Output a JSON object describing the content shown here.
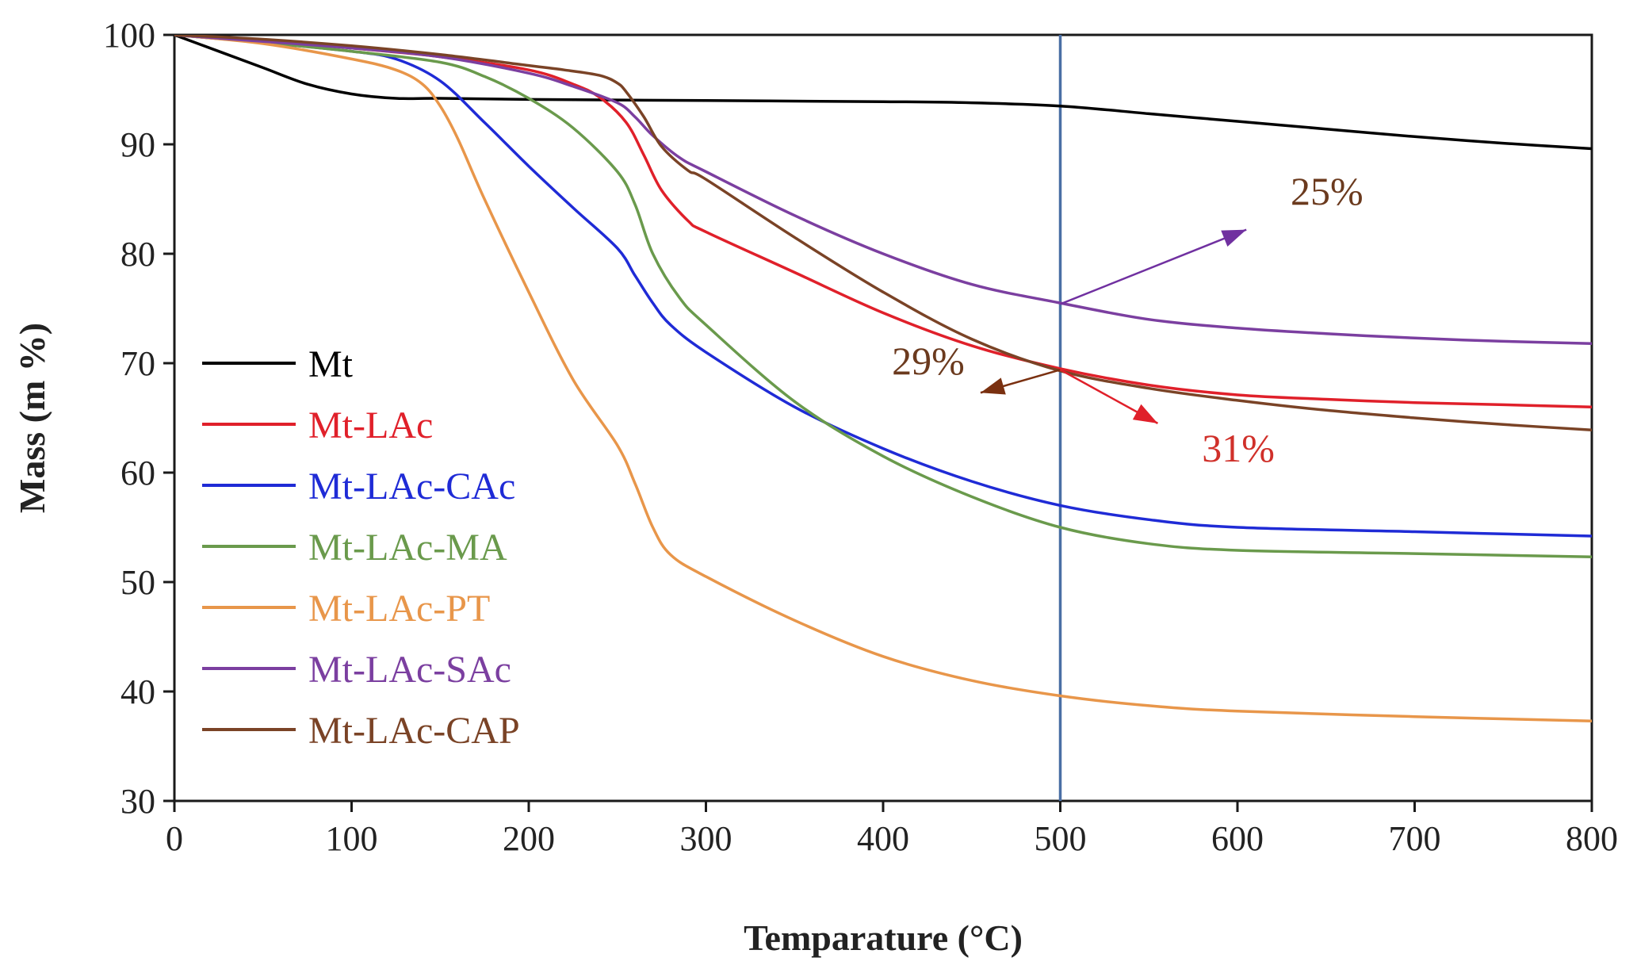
{
  "chart_data": {
    "type": "line",
    "title": "",
    "xlabel": "Temparature (°C)",
    "ylabel": "Mass (m %)",
    "xlim": [
      0,
      800
    ],
    "ylim": [
      30,
      100
    ],
    "xticks": [
      0,
      100,
      200,
      300,
      400,
      500,
      600,
      700,
      800
    ],
    "yticks": [
      30,
      40,
      50,
      60,
      70,
      80,
      90,
      100
    ],
    "grid": false,
    "legend_position": "left",
    "reference_line": {
      "x": 500,
      "color": "#4a6fa5"
    },
    "series": [
      {
        "name": "Mt",
        "color": "#000000",
        "x": [
          0,
          25,
          50,
          75,
          100,
          125,
          150,
          200,
          300,
          400,
          450,
          500,
          550,
          600,
          650,
          700,
          750,
          800
        ],
        "y": [
          100,
          98.5,
          97,
          95.5,
          94.6,
          94.2,
          94.2,
          94.1,
          94.0,
          93.9,
          93.8,
          93.5,
          92.8,
          92.1,
          91.4,
          90.7,
          90.1,
          89.6
        ]
      },
      {
        "name": "Mt-LAc",
        "color": "#e0202a",
        "x": [
          0,
          50,
          100,
          150,
          200,
          225,
          240,
          255,
          265,
          275,
          290,
          300,
          350,
          400,
          450,
          500,
          550,
          600,
          650,
          700,
          750,
          800
        ],
        "y": [
          100,
          99.5,
          98.8,
          98.0,
          96.8,
          95.5,
          94.3,
          92.0,
          89.0,
          85.8,
          83.0,
          82.0,
          78.3,
          74.6,
          71.6,
          69.5,
          68.0,
          67.1,
          66.7,
          66.4,
          66.2,
          66.0
        ]
      },
      {
        "name": "Mt-LAc-CAc",
        "color": "#1f2bd6",
        "x": [
          0,
          50,
          100,
          125,
          150,
          175,
          200,
          225,
          250,
          260,
          270,
          280,
          300,
          350,
          400,
          450,
          500,
          550,
          600,
          700,
          800
        ],
        "y": [
          100,
          99.3,
          98.5,
          97.8,
          95.8,
          92.0,
          88.0,
          84.2,
          80.5,
          78.0,
          75.5,
          73.5,
          71.0,
          66.0,
          62.2,
          59.2,
          57.0,
          55.7,
          55.0,
          54.6,
          54.2
        ]
      },
      {
        "name": "Mt-LAc-MA",
        "color": "#6a9a4c",
        "x": [
          0,
          50,
          100,
          150,
          175,
          200,
          225,
          250,
          260,
          270,
          285,
          300,
          350,
          400,
          450,
          500,
          550,
          600,
          700,
          800
        ],
        "y": [
          100,
          99.3,
          98.5,
          97.5,
          96.2,
          94.2,
          91.5,
          87.5,
          84.5,
          80.0,
          76.0,
          73.5,
          66.5,
          61.5,
          57.8,
          55.0,
          53.5,
          52.9,
          52.6,
          52.3
        ]
      },
      {
        "name": "Mt-LAc-PT",
        "color": "#e8964a",
        "x": [
          0,
          50,
          100,
          125,
          140,
          150,
          160,
          175,
          200,
          225,
          250,
          260,
          270,
          280,
          300,
          350,
          400,
          450,
          500,
          550,
          600,
          700,
          800
        ],
        "y": [
          100,
          99.2,
          97.8,
          96.8,
          95.5,
          93.5,
          90.5,
          85.0,
          76.5,
          68.5,
          62.5,
          59.0,
          55.0,
          52.5,
          50.5,
          46.5,
          43.2,
          41.0,
          39.6,
          38.7,
          38.2,
          37.7,
          37.3
        ]
      },
      {
        "name": "Mt-LAc-SAc",
        "color": "#7b3fa0",
        "x": [
          0,
          50,
          100,
          150,
          200,
          225,
          250,
          260,
          270,
          285,
          300,
          350,
          400,
          450,
          500,
          550,
          600,
          650,
          700,
          750,
          800
        ],
        "y": [
          100,
          99.4,
          98.8,
          98.0,
          96.5,
          95.3,
          93.8,
          92.5,
          90.8,
          88.8,
          87.5,
          83.5,
          80.0,
          77.2,
          75.5,
          74.0,
          73.2,
          72.7,
          72.3,
          72.0,
          71.8
        ]
      },
      {
        "name": "Mt-LAc-CAP",
        "color": "#7a4326",
        "x": [
          0,
          50,
          100,
          150,
          200,
          220,
          240,
          250,
          255,
          265,
          275,
          290,
          300,
          350,
          400,
          450,
          500,
          550,
          600,
          650,
          700,
          750,
          800
        ],
        "y": [
          100,
          99.6,
          99.0,
          98.2,
          97.2,
          96.8,
          96.3,
          95.6,
          94.8,
          92.5,
          89.8,
          87.6,
          86.8,
          81.5,
          76.5,
          72.2,
          69.3,
          67.7,
          66.6,
          65.7,
          65.0,
          64.4,
          63.9
        ]
      }
    ],
    "annotations": [
      {
        "text": "25%",
        "color": "#6b3a1e",
        "arrow_color": "#7030a0",
        "arrow_from": [
          500,
          75.4
        ],
        "arrow_to": [
          605,
          82.2
        ],
        "label_at": [
          630,
          84.5
        ]
      },
      {
        "text": "29%",
        "color": "#6b3a1e",
        "arrow_color": "#7a3010",
        "arrow_from": [
          500,
          69.4
        ],
        "arrow_to": [
          455,
          67.3
        ],
        "label_at": [
          405,
          69.0
        ]
      },
      {
        "text": "31%",
        "color": "#d0302a",
        "arrow_color": "#e0202a",
        "arrow_from": [
          500,
          69.4
        ],
        "arrow_to": [
          555,
          64.5
        ],
        "label_at": [
          580,
          61.0
        ]
      }
    ]
  }
}
